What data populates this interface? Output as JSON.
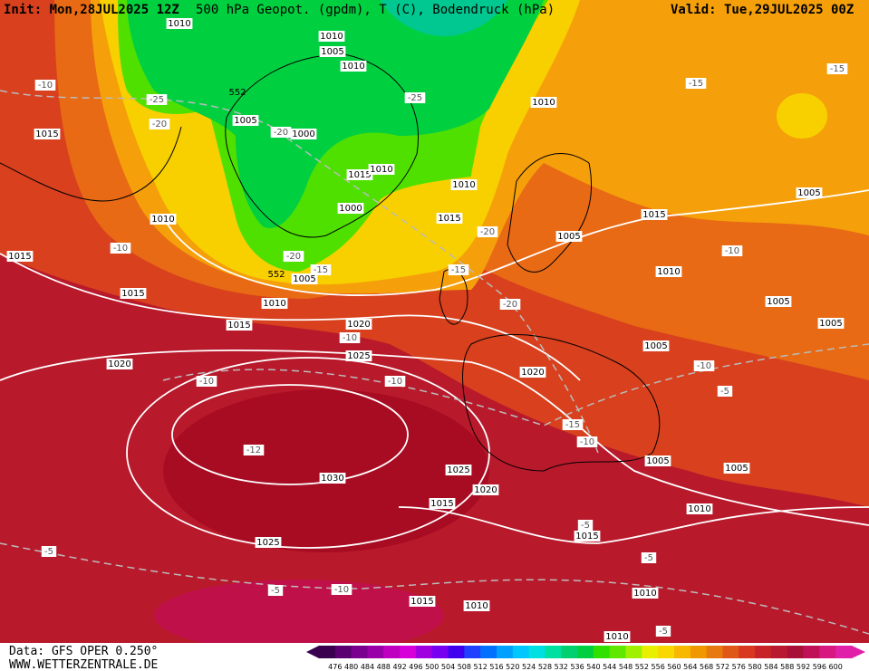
{
  "header": {
    "init": "Init: Mon,28JUL2025 12Z",
    "title": "500 hPa Geopot. (gpdm), T (C), Bodendruck (hPa)",
    "valid": "Valid: Tue,29JUL2025 00Z"
  },
  "footer": {
    "source": "Data: GFS OPER 0.250°",
    "website": "WWW.WETTERZENTRALE.DE"
  },
  "colorbar": {
    "ticks": [
      476,
      480,
      484,
      488,
      492,
      496,
      500,
      504,
      508,
      512,
      516,
      520,
      524,
      528,
      532,
      536,
      540,
      544,
      548,
      552,
      556,
      560,
      564,
      568,
      572,
      576,
      580,
      584,
      588,
      592,
      596,
      600
    ]
  },
  "isobar_labels": [
    "1010",
    "1010",
    "1005",
    "1010",
    "1005",
    "1000",
    "1015",
    "1010",
    "1010",
    "1000",
    "1010",
    "1015",
    "1015",
    "1010",
    "1005",
    "1015",
    "1020",
    "1025",
    "1020",
    "1030",
    "1025",
    "1020",
    "1015",
    "1025",
    "1015",
    "1010",
    "1010",
    "1010",
    "1015",
    "1010",
    "1005",
    "1005",
    "1005",
    "1020",
    "1010",
    "1005",
    "1015",
    "1015",
    "1010",
    "1005",
    "1005",
    "1005",
    "1015"
  ],
  "isotherm_labels": [
    "-10",
    "-25",
    "-20",
    "-25",
    "-20",
    "-20",
    "-15",
    "-10",
    "-15",
    "-20",
    "-20",
    "-10",
    "-10",
    "-10",
    "-12",
    "-15",
    "-10",
    "-10",
    "-5",
    "-10",
    "-15",
    "-15",
    "-5",
    "-5",
    "-5",
    "-5",
    "-10",
    "-5"
  ],
  "geopotential_labels": [
    "552",
    "552"
  ]
}
